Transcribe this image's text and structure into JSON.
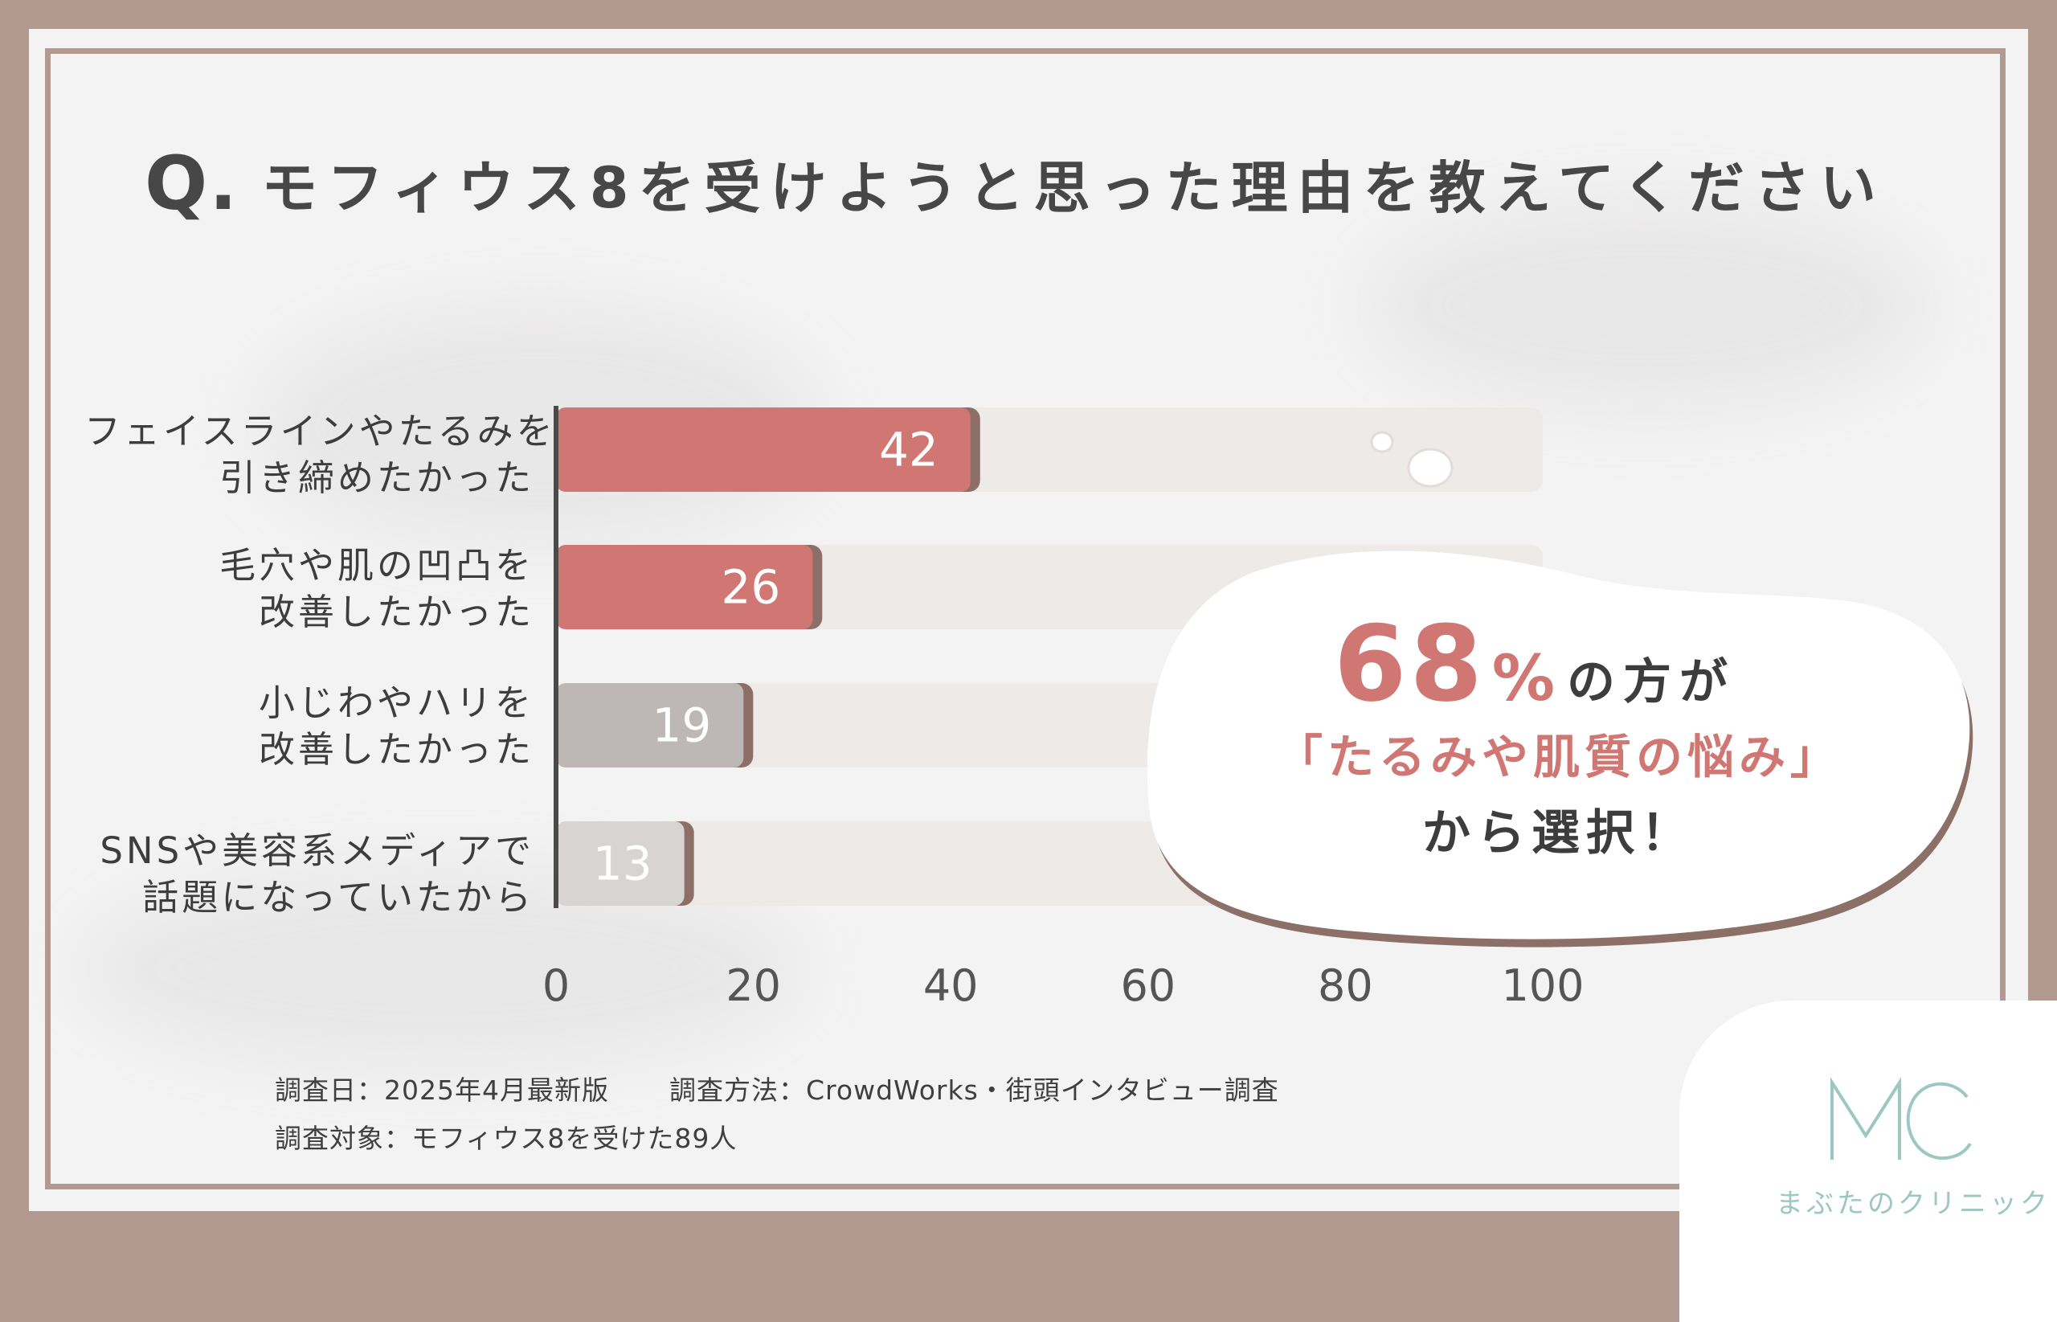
{
  "question": {
    "mark": "Q.",
    "text": "モフィウス8を受けようと思った理由を教えてください"
  },
  "chart_data": {
    "type": "bar",
    "orientation": "horizontal",
    "categories": [
      [
        "フェイスラインやたるみを",
        "引き締めたかった"
      ],
      [
        "毛穴や肌の凹凸を",
        "改善したかった"
      ],
      [
        "小じわやハリを",
        "改善したかった"
      ],
      [
        "SNSや美容系メディアで",
        "話題になっていたから"
      ]
    ],
    "values": [
      42,
      26,
      19,
      13
    ],
    "value_labels": [
      "42",
      "26",
      "19",
      "13"
    ],
    "bar_colors": [
      "#d07773",
      "#d07773",
      "#bdb8b6",
      "#d8d4d3"
    ],
    "xlim": [
      0,
      100
    ],
    "xticks": [
      "0",
      "20",
      "40",
      "60",
      "80",
      "100"
    ],
    "grid": false,
    "legend": "none"
  },
  "callout": {
    "pct_number": "68",
    "pct_sign": "%",
    "pct_rest": "の方が",
    "quote": "「たるみや肌質の悩み」",
    "from_text": "から選択！"
  },
  "footnotes": {
    "date": "調査日：2025年4月最新版",
    "method": "調査方法：CrowdWorks・街頭インタビュー調査",
    "target": "調査対象：モフィウス8を受けた89人"
  },
  "logo": {
    "text": "まぶたのクリニック",
    "monogram": "MC"
  },
  "colors": {
    "frame": "#b39a90",
    "accent": "#d07773",
    "logo": "#9cc8bf"
  }
}
